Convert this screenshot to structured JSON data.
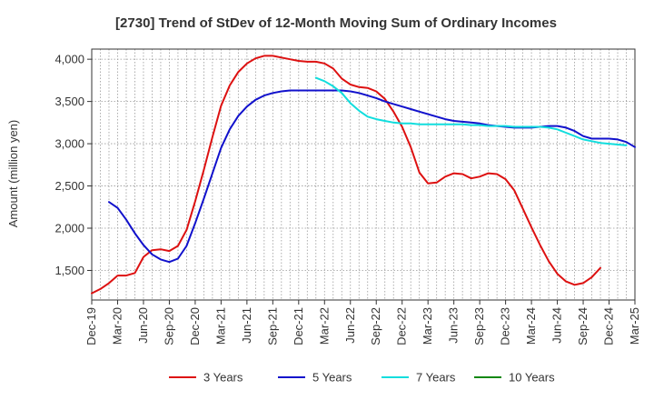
{
  "chart_data": {
    "type": "line",
    "title": "[2730]  Trend of StDev of 12-Month Moving Sum of Ordinary Incomes",
    "xlabel": "",
    "ylabel": "Amount (million yen)",
    "ylim": [
      1150,
      4120
    ],
    "yticks": [
      1500,
      2000,
      2500,
      3000,
      3500,
      4000
    ],
    "ytick_labels": [
      "1,500",
      "2,000",
      "2,500",
      "3,000",
      "3,500",
      "4,000"
    ],
    "x_start": "2019-12",
    "x_end": "2025-03",
    "xtick_labels": [
      "Dec-19",
      "Mar-20",
      "Jun-20",
      "Sep-20",
      "Dec-20",
      "Mar-21",
      "Jun-21",
      "Sep-21",
      "Dec-21",
      "Mar-22",
      "Jun-22",
      "Sep-22",
      "Dec-22",
      "Mar-23",
      "Jun-23",
      "Sep-23",
      "Dec-23",
      "Mar-24",
      "Jun-24",
      "Sep-24",
      "Dec-24",
      "Mar-25"
    ],
    "grid": true,
    "legend_position": "bottom",
    "series": [
      {
        "name": "3 Years",
        "color": "#dd1111",
        "start": "2019-12",
        "values": [
          1230,
          1280,
          1350,
          1440,
          1440,
          1470,
          1660,
          1740,
          1750,
          1730,
          1790,
          1980,
          2320,
          2690,
          3080,
          3450,
          3690,
          3850,
          3950,
          4010,
          4040,
          4040,
          4020,
          4000,
          3980,
          3970,
          3970,
          3950,
          3890,
          3770,
          3700,
          3670,
          3660,
          3620,
          3530,
          3380,
          3200,
          2960,
          2660,
          2530,
          2540,
          2610,
          2650,
          2640,
          2590,
          2610,
          2650,
          2640,
          2580,
          2450,
          2230,
          2010,
          1800,
          1610,
          1460,
          1370,
          1330,
          1350,
          1420,
          1530
        ]
      },
      {
        "name": "5 Years",
        "color": "#1111cc",
        "start": "2020-02",
        "values": [
          2310,
          2240,
          2100,
          1940,
          1800,
          1690,
          1630,
          1600,
          1640,
          1790,
          2060,
          2350,
          2650,
          2950,
          3170,
          3330,
          3440,
          3520,
          3570,
          3600,
          3620,
          3630,
          3630,
          3630,
          3630,
          3630,
          3630,
          3630,
          3620,
          3600,
          3570,
          3540,
          3500,
          3470,
          3440,
          3410,
          3380,
          3350,
          3320,
          3290,
          3270,
          3260,
          3250,
          3240,
          3220,
          3210,
          3200,
          3190,
          3190,
          3190,
          3200,
          3210,
          3210,
          3190,
          3150,
          3090,
          3060,
          3060,
          3060,
          3050,
          3020,
          2960
        ]
      },
      {
        "name": "7 Years",
        "color": "#11dddd",
        "start": "2022-02",
        "values": [
          3780,
          3740,
          3680,
          3600,
          3480,
          3390,
          3320,
          3290,
          3270,
          3250,
          3240,
          3240,
          3230,
          3230,
          3230,
          3230,
          3230,
          3230,
          3220,
          3220,
          3210,
          3210,
          3210,
          3200,
          3200,
          3200,
          3200,
          3190,
          3170,
          3130,
          3090,
          3050,
          3030,
          3010,
          3000,
          2990,
          2980
        ]
      },
      {
        "name": "10 Years",
        "color": "#118811",
        "start": "2024-12",
        "values": []
      }
    ]
  }
}
